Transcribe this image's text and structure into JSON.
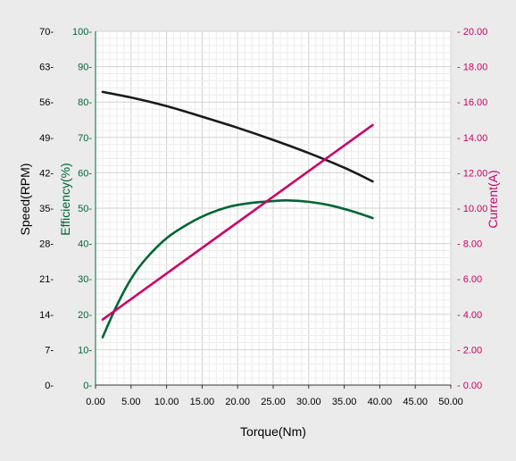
{
  "chart_data": {
    "type": "line",
    "xlabel": "Torque(Nm)",
    "x_ticks": [
      "0.00",
      "5.00",
      "10.00",
      "15.00",
      "20.00",
      "25.00",
      "30.00",
      "35.00",
      "40.00",
      "45.00",
      "50.00"
    ],
    "xlim": [
      0,
      50
    ],
    "grid": true,
    "axes": {
      "speed": {
        "label": "Speed(RPM)",
        "color": "#000000",
        "side": "left-outer",
        "ylim": [
          0,
          70
        ],
        "ticks": [
          "0",
          "7",
          "14",
          "21",
          "28",
          "35",
          "42",
          "49",
          "56",
          "63",
          "70"
        ]
      },
      "efficiency": {
        "label": "Efficiency(%)",
        "color": "#006633",
        "side": "left-inner",
        "ylim": [
          0,
          100
        ],
        "ticks": [
          "0",
          "10",
          "20",
          "30",
          "40",
          "50",
          "60",
          "70",
          "80",
          "90",
          "100"
        ]
      },
      "current": {
        "label": "Current(A)",
        "color": "#cc0066",
        "side": "right",
        "ylim": [
          0,
          20
        ],
        "ticks": [
          "0.00",
          "2.00",
          "4.00",
          "6.00",
          "8.00",
          "10.00",
          "12.00",
          "14.00",
          "16.00",
          "18.00",
          "20.00"
        ]
      }
    },
    "series": [
      {
        "axis": "speed",
        "color": "#1a1a1a",
        "x": [
          1,
          5,
          10,
          15,
          20,
          25,
          30,
          35,
          39
        ],
        "y": [
          58.0,
          56.9,
          55.2,
          53.1,
          50.9,
          48.5,
          45.9,
          43.0,
          40.3
        ]
      },
      {
        "axis": "efficiency",
        "color": "#006633",
        "x": [
          1,
          3,
          5,
          7,
          10,
          13,
          16,
          19,
          22,
          25,
          27,
          30,
          33,
          36,
          39
        ],
        "y": [
          13.5,
          22.5,
          30.0,
          35.5,
          41.5,
          45.5,
          48.5,
          50.5,
          51.5,
          52.0,
          52.2,
          51.8,
          50.8,
          49.2,
          47.2
        ]
      },
      {
        "axis": "current",
        "color": "#cc0066",
        "x": [
          1,
          39
        ],
        "y": [
          3.7,
          14.7
        ]
      }
    ]
  }
}
